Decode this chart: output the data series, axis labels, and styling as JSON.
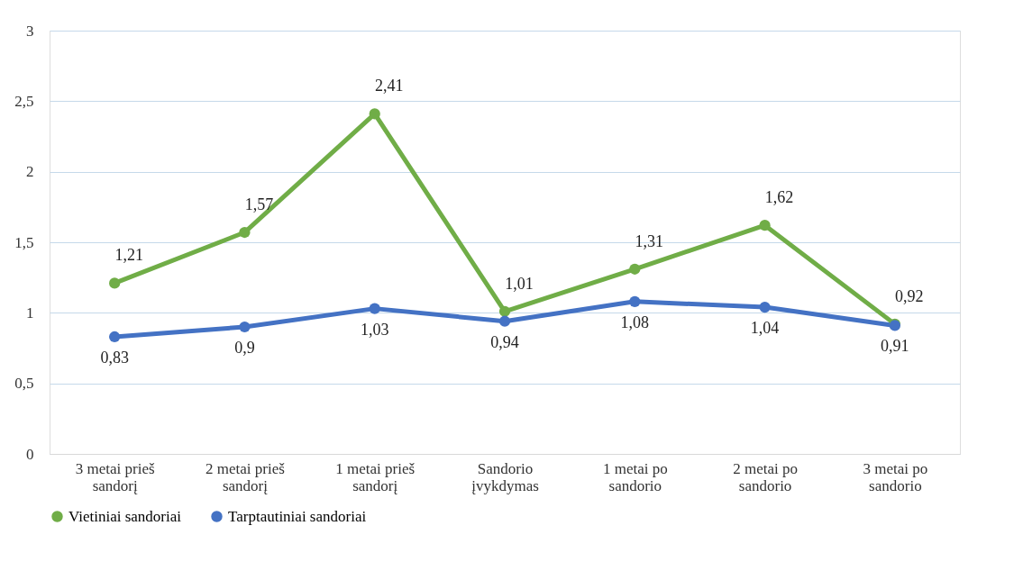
{
  "chart_data": {
    "type": "line",
    "categories": [
      "3 metai prieš sandorį",
      "2 metai prieš sandorį",
      "1 metai prieš sandorį",
      "Sandorio įvykdymas",
      "1 metai po sandorio",
      "2 metai po sandorio",
      "3 metai po sandorio"
    ],
    "series": [
      {
        "name": "Vietiniai sandoriai",
        "color": "#70ad47",
        "values": [
          1.21,
          1.57,
          2.41,
          1.01,
          1.31,
          1.62,
          0.92
        ],
        "value_labels": [
          "1,21",
          "1,57",
          "2,41",
          "1,01",
          "1,31",
          "1,62",
          "0,92"
        ]
      },
      {
        "name": "Tarptautiniai sandoriai",
        "color": "#4472c4",
        "values": [
          0.83,
          0.9,
          1.03,
          0.94,
          1.08,
          1.04,
          0.91
        ],
        "value_labels": [
          "0,83",
          "0,9",
          "1,03",
          "0,94",
          "1,08",
          "1,04",
          "0,91"
        ]
      }
    ],
    "ylim": [
      0,
      3
    ],
    "yticks": [
      0,
      {
        "value": 0.5,
        "label": "0,5"
      },
      1,
      {
        "value": 1.5,
        "label": "1,5"
      },
      2,
      {
        "value": 2.5,
        "label": "2,5"
      },
      3
    ],
    "grid": "y",
    "legend": "bottom",
    "marker": "circle",
    "line_style": "solid"
  }
}
